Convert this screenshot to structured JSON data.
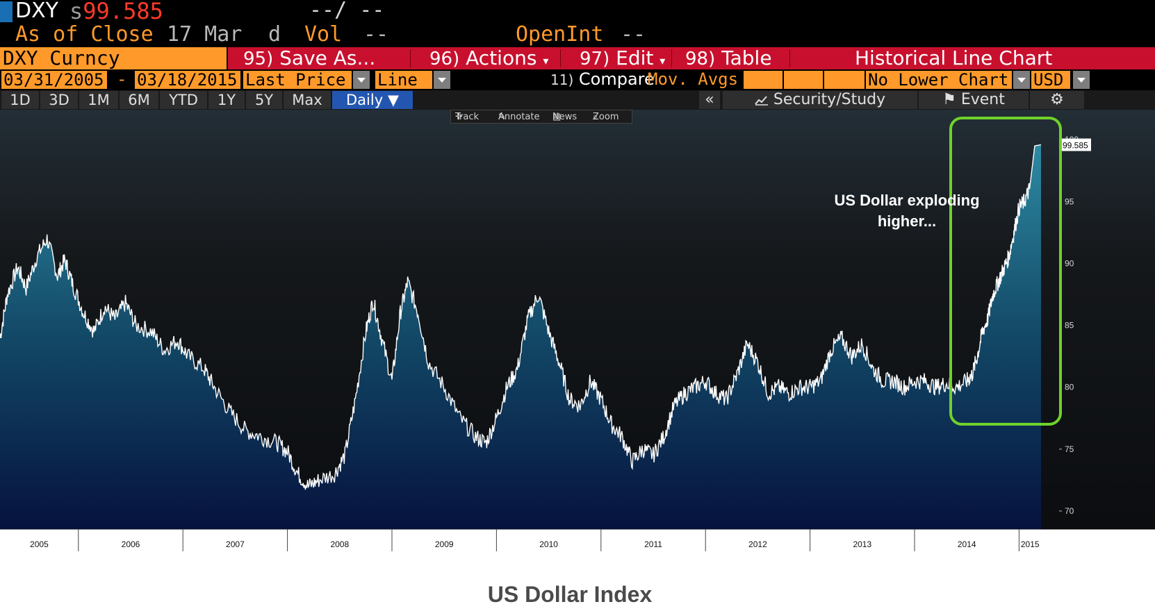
{
  "header": {
    "ticker": "DXY",
    "price_prefix": "s",
    "price": "99.585",
    "change": "--/ --",
    "as_of_label": "As of Close",
    "as_of_date": "17 Mar",
    "d_label": "d",
    "vol_label": "Vol",
    "vol_value": "--",
    "openint_label": "OpenInt",
    "openint_value": "--"
  },
  "toolbar": {
    "security": "DXY Curncy",
    "save_num": "95)",
    "save_label": "Save As...",
    "actions_num": "96)",
    "actions_label": "Actions",
    "edit_num": "97)",
    "edit_label": "Edit",
    "table_num": "98)",
    "table_label": "Table",
    "chart_title": "Historical Line Chart"
  },
  "settings": {
    "start_date": "03/31/2005",
    "dash": "-",
    "end_date": "03/18/2015",
    "field": "Last Price",
    "style": "Line",
    "compare_num": "11)",
    "compare_label": "Compare",
    "mov_avgs": "Mov. Avgs",
    "lower_chart": "No Lower Chart",
    "currency": "USD"
  },
  "periods": {
    "tabs": [
      "1D",
      "3D",
      "1M",
      "6M",
      "YTD",
      "1Y",
      "5Y",
      "Max"
    ],
    "active": "Daily ▼",
    "collapse": "«",
    "security_study": "Security/Study",
    "event": "Event",
    "settings_icon": "⚙"
  },
  "mini_toolbar": {
    "track": "Track",
    "annotate": "Annotate",
    "news": "News",
    "zoom": "Zoom"
  },
  "annotation": {
    "line1": "US Dollar exploding",
    "line2": "higher..."
  },
  "caption": "US Dollar Index",
  "colors": {
    "amber": "#ff9a2a",
    "bloomberg_red": "#c8102e",
    "price_red": "#ff3a2a",
    "highlight_green": "#6fd22a",
    "active_tab": "#2356b0"
  },
  "chart_data": {
    "type": "area",
    "ylim": [
      69,
      101
    ],
    "yticks": [
      70,
      75,
      80,
      85,
      90,
      95,
      100
    ],
    "last_value_label": "99.585",
    "x_tick_labels": [
      "2005",
      "2006",
      "2007",
      "2008",
      "2009",
      "2010",
      "2011",
      "2012",
      "2013",
      "2014",
      "2015"
    ],
    "x_start": 2005.25,
    "x_end": 2015.21,
    "series": [
      {
        "x": [
          2005.25,
          2005.32,
          2005.42,
          2005.5,
          2005.6,
          2005.7,
          2005.8,
          2005.87,
          2005.95,
          2006.05,
          2006.15,
          2006.25,
          2006.35,
          2006.45,
          2006.55,
          2006.7,
          2006.82,
          2006.95,
          2007.05,
          2007.2,
          2007.3,
          2007.45,
          2007.6,
          2007.75,
          2007.9,
          2008.0,
          2008.1,
          2008.2,
          2008.3,
          2008.45,
          2008.55,
          2008.65,
          2008.75,
          2008.82,
          2008.9,
          2009.0,
          2009.08,
          2009.15,
          2009.25,
          2009.35,
          2009.5,
          2009.65,
          2009.8,
          2009.9,
          2010.0,
          2010.1,
          2010.2,
          2010.3,
          2010.4,
          2010.5,
          2010.6,
          2010.7,
          2010.8,
          2010.9,
          2011.0,
          2011.1,
          2011.2,
          2011.3,
          2011.4,
          2011.5,
          2011.6,
          2011.7,
          2011.8,
          2011.9,
          2012.0,
          2012.1,
          2012.2,
          2012.3,
          2012.4,
          2012.5,
          2012.6,
          2012.7,
          2012.8,
          2012.9,
          2013.0,
          2013.1,
          2013.2,
          2013.3,
          2013.4,
          2013.5,
          2013.6,
          2013.7,
          2013.8,
          2013.9,
          2014.0,
          2014.1,
          2014.2,
          2014.3,
          2014.4,
          2014.5,
          2014.55,
          2014.6,
          2014.65,
          2014.7,
          2014.75,
          2014.8,
          2014.85,
          2014.9,
          2014.95,
          2015.0,
          2015.05,
          2015.1,
          2015.15,
          2015.21
        ],
        "values": [
          84.0,
          87.5,
          89.7,
          88.0,
          90.5,
          92.0,
          89.0,
          90.3,
          88.2,
          86.0,
          84.5,
          86.5,
          85.5,
          86.8,
          85.0,
          84.5,
          83.0,
          83.8,
          82.5,
          81.5,
          80.0,
          78.0,
          76.5,
          76.0,
          75.5,
          74.8,
          73.0,
          72.0,
          72.5,
          73.0,
          74.5,
          79.0,
          84.5,
          87.0,
          84.0,
          80.5,
          86.0,
          88.5,
          86.0,
          82.0,
          80.0,
          77.5,
          76.0,
          75.5,
          77.5,
          80.0,
          81.5,
          85.5,
          87.5,
          84.5,
          82.0,
          79.0,
          78.5,
          80.5,
          79.0,
          77.0,
          76.0,
          74.0,
          75.0,
          74.5,
          76.0,
          78.5,
          79.5,
          80.0,
          80.5,
          79.5,
          79.0,
          81.0,
          83.5,
          82.0,
          79.5,
          80.0,
          79.5,
          80.0,
          80.0,
          80.5,
          83.0,
          84.0,
          82.5,
          83.5,
          81.5,
          80.5,
          80.5,
          80.0,
          80.5,
          80.5,
          80.0,
          80.3,
          80.0,
          80.5,
          81.0,
          82.5,
          84.5,
          85.5,
          87.5,
          88.5,
          89.5,
          90.5,
          92.5,
          94.5,
          95.0,
          96.0,
          99.5,
          99.585
        ]
      }
    ]
  }
}
